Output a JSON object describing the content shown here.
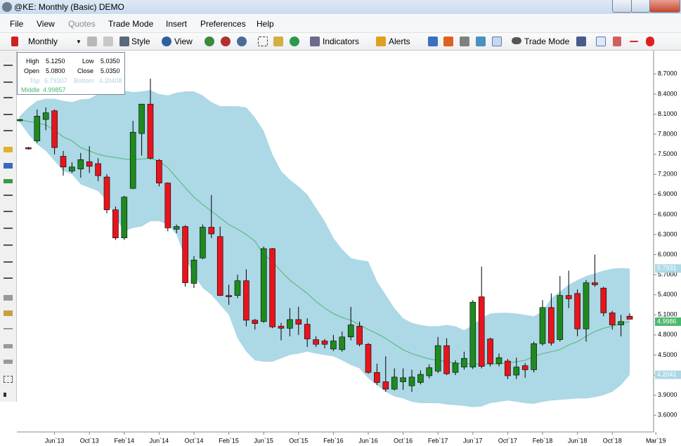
{
  "window": {
    "title": "@KE: Monthly (Basic) DEMO",
    "menu": [
      {
        "label": "File",
        "enabled": true
      },
      {
        "label": "View",
        "enabled": true
      },
      {
        "label": "Quotes",
        "enabled": false
      },
      {
        "label": "Trade Mode",
        "enabled": true
      },
      {
        "label": "Insert",
        "enabled": true
      },
      {
        "label": "Preferences",
        "enabled": true
      },
      {
        "label": "Help",
        "enabled": true
      }
    ],
    "toolbar": {
      "interval": "Monthly",
      "style": "Style",
      "view": "View",
      "indicators": "Indicators",
      "alerts": "Alerts",
      "trade_mode": "Trade Mode"
    }
  },
  "info_box": {
    "high_label": "High",
    "high": "5.1250",
    "low_label": "Low",
    "low": "5.0350",
    "open_label": "Open",
    "open": "5.0800",
    "close_label": "Close",
    "close": "5.0350",
    "top_label": "Top",
    "top": "5.79307",
    "bottom_label": "Bottom",
    "bottom": "4.20408",
    "middle_label": "Middle",
    "middle": "4.99857"
  },
  "chart_data": {
    "type": "candlestick",
    "categories": [
      null,
      null,
      null,
      null,
      "Jun`13",
      null,
      null,
      null,
      "Oct`13",
      null,
      null,
      null,
      "Feb`14",
      null,
      null,
      null,
      "Jun`14",
      null,
      null,
      null,
      "Oct`14",
      null,
      null,
      null,
      "Feb`15",
      null,
      null,
      null,
      "Jun`15",
      null,
      null,
      null,
      "Oct`15",
      null,
      null,
      null,
      "Feb`16",
      null,
      null,
      null,
      "Jun`16",
      null,
      null,
      null,
      "Oct`16",
      null,
      null,
      null,
      "Feb`17",
      null,
      null,
      null,
      "Jun`17",
      null,
      null,
      null,
      "Oct`17",
      null,
      null,
      null,
      "Feb`18",
      null,
      null,
      null,
      "Jun`18",
      null,
      null,
      null,
      "Oct`18",
      null,
      null,
      null,
      null,
      "Mar`19"
    ],
    "open": [
      8.0,
      7.6,
      7.7,
      8.02,
      8.15,
      7.47,
      7.25,
      7.28,
      7.39,
      7.36,
      7.16,
      6.67,
      6.25,
      6.99,
      7.81,
      8.25,
      7.41,
      7.07,
      6.38,
      6.42,
      5.57,
      5.95,
      6.41,
      6.27,
      5.39,
      5.39,
      5.61,
      5.02,
      5.0,
      6.09,
      4.93,
      4.9,
      5.03,
      4.96,
      4.73,
      4.71,
      4.59,
      4.58,
      4.77,
      4.93,
      4.66,
      4.24,
      4.1,
      3.99,
      4.1,
      4.04,
      4.09,
      4.19,
      4.26,
      4.64,
      4.24,
      4.32,
      4.32,
      5.37,
      4.74,
      4.37,
      4.41,
      4.2,
      4.34,
      4.28,
      4.67,
      5.21,
      4.73,
      5.39,
      5.42,
      4.89,
      5.58,
      5.5,
      5.13,
      4.95,
      5.08,
      null,
      null,
      null
    ],
    "high": [
      8.03,
      7.61,
      8.17,
      8.2,
      8.17,
      7.55,
      7.38,
      7.52,
      7.62,
      7.44,
      7.2,
      6.72,
      6.88,
      8.0,
      8.25,
      8.63,
      7.43,
      7.08,
      6.45,
      6.44,
      5.98,
      6.45,
      6.89,
      6.42,
      5.55,
      5.7,
      5.78,
      5.04,
      6.12,
      6.1,
      4.98,
      5.2,
      5.22,
      5.05,
      4.78,
      4.74,
      4.8,
      4.85,
      5.22,
      5.0,
      4.68,
      4.37,
      4.48,
      4.3,
      4.3,
      4.28,
      4.27,
      4.36,
      4.77,
      4.75,
      4.42,
      4.55,
      5.32,
      5.82,
      4.76,
      4.52,
      4.44,
      4.46,
      4.38,
      4.7,
      5.32,
      5.42,
      5.68,
      5.76,
      5.48,
      5.62,
      6.0,
      5.52,
      5.16,
      5.1,
      5.125,
      null,
      null,
      null
    ],
    "low": [
      7.99,
      7.57,
      7.67,
      7.86,
      7.5,
      7.18,
      7.22,
      7.15,
      7.22,
      7.1,
      6.62,
      6.22,
      6.22,
      6.98,
      7.48,
      7.42,
      7.02,
      6.35,
      6.32,
      5.52,
      5.5,
      5.93,
      6.25,
      5.38,
      5.25,
      5.35,
      4.93,
      4.88,
      4.98,
      4.9,
      4.72,
      4.78,
      4.8,
      4.62,
      4.62,
      4.6,
      4.56,
      4.55,
      4.72,
      4.63,
      4.22,
      4.05,
      3.95,
      3.97,
      3.98,
      3.95,
      4.06,
      4.15,
      4.23,
      4.2,
      4.2,
      4.28,
      4.29,
      4.3,
      4.33,
      4.33,
      4.14,
      4.14,
      4.16,
      4.24,
      4.64,
      4.64,
      4.7,
      5.2,
      4.78,
      4.7,
      5.52,
      5.08,
      4.88,
      4.78,
      5.035,
      null,
      null,
      null
    ],
    "close": [
      8.02,
      7.58,
      8.07,
      8.12,
      7.6,
      7.31,
      7.31,
      7.42,
      7.32,
      7.18,
      6.67,
      6.25,
      6.86,
      7.83,
      8.25,
      7.44,
      7.07,
      6.4,
      6.42,
      5.58,
      5.92,
      6.41,
      6.31,
      5.39,
      5.37,
      5.61,
      5.02,
      4.97,
      6.09,
      4.92,
      4.9,
      5.03,
      4.96,
      4.74,
      4.66,
      4.66,
      4.71,
      4.77,
      4.95,
      4.66,
      4.24,
      4.09,
      3.99,
      4.17,
      4.16,
      4.17,
      4.21,
      4.31,
      4.64,
      4.22,
      4.38,
      4.45,
      5.29,
      4.33,
      4.37,
      4.46,
      4.19,
      4.32,
      4.28,
      4.67,
      5.21,
      4.68,
      5.39,
      5.34,
      4.89,
      5.58,
      5.55,
      5.13,
      4.95,
      5.0,
      5.035,
      null,
      null,
      null
    ],
    "band_top": [
      8.07,
      8.2,
      8.3,
      8.33,
      8.33,
      8.3,
      8.28,
      8.32,
      8.33,
      8.4,
      8.44,
      8.46,
      8.45,
      8.43,
      8.44,
      8.46,
      8.4,
      8.38,
      8.42,
      8.44,
      8.44,
      8.38,
      8.28,
      8.22,
      8.22,
      8.22,
      8.2,
      8.05,
      7.85,
      7.5,
      7.25,
      7.12,
      7.02,
      6.9,
      6.7,
      6.5,
      6.25,
      6.08,
      5.95,
      5.92,
      5.9,
      5.6,
      5.4,
      5.2,
      5.05,
      4.98,
      4.95,
      4.93,
      4.93,
      4.95,
      4.93,
      4.87,
      4.95,
      5.05,
      5.12,
      5.13,
      5.13,
      5.12,
      5.1,
      5.08,
      5.15,
      5.35,
      5.45,
      5.55,
      5.62,
      5.68,
      5.72,
      5.76,
      5.79,
      5.8,
      5.79307,
      null,
      null,
      null
    ],
    "band_middle": [
      8.02,
      7.99,
      7.97,
      7.94,
      7.86,
      7.76,
      7.7,
      7.6,
      7.55,
      7.5,
      7.47,
      7.45,
      7.43,
      7.42,
      7.43,
      7.44,
      7.4,
      7.3,
      7.15,
      7.0,
      6.86,
      6.75,
      6.65,
      6.55,
      6.45,
      6.38,
      6.3,
      6.2,
      6.0,
      5.9,
      5.75,
      5.62,
      5.52,
      5.42,
      5.3,
      5.2,
      5.12,
      5.06,
      5.02,
      4.95,
      4.88,
      4.82,
      4.75,
      4.66,
      4.58,
      4.52,
      4.48,
      4.44,
      4.42,
      4.4,
      4.38,
      4.37,
      4.37,
      4.36,
      4.36,
      4.37,
      4.38,
      4.4,
      4.42,
      4.48,
      4.52,
      4.55,
      4.58,
      4.65,
      4.7,
      4.78,
      4.85,
      4.9,
      4.93,
      4.97,
      4.99857,
      null,
      null,
      null
    ],
    "band_bottom": [
      7.98,
      7.8,
      7.65,
      7.55,
      7.4,
      7.25,
      7.2,
      7.05,
      7.0,
      6.95,
      6.8,
      6.55,
      6.35,
      6.4,
      6.42,
      6.5,
      6.5,
      6.45,
      6.3,
      5.95,
      5.7,
      5.5,
      5.4,
      5.25,
      5.1,
      4.75,
      4.55,
      4.42,
      4.4,
      4.4,
      4.45,
      4.5,
      4.52,
      4.55,
      4.52,
      4.5,
      4.48,
      4.42,
      4.35,
      4.3,
      4.15,
      4.05,
      3.95,
      3.88,
      3.85,
      3.8,
      3.78,
      3.78,
      3.78,
      3.76,
      3.75,
      3.74,
      3.72,
      3.73,
      3.78,
      3.8,
      3.82,
      3.8,
      3.78,
      3.77,
      3.8,
      3.82,
      3.83,
      3.84,
      3.85,
      3.85,
      3.87,
      3.9,
      3.95,
      4.05,
      4.20408,
      null,
      null,
      null
    ],
    "up_color": "#1f8a1f",
    "down_color": "#e8141c",
    "band_color": "#add8e6",
    "middle_color": "#4cb86e",
    "ylim": [
      3.35,
      9.05
    ],
    "yticks": [
      {
        "value": 3.6,
        "label": "3.6000"
      },
      {
        "value": 3.9,
        "label": "3.9000"
      },
      {
        "value": 4.2,
        "label": "4.2000"
      },
      {
        "value": 4.5,
        "label": "4.5000"
      },
      {
        "value": 4.8,
        "label": "4.8000"
      },
      {
        "value": 5.1,
        "label": "5.1000"
      },
      {
        "value": 5.4,
        "label": "5.4000"
      },
      {
        "value": 5.7,
        "label": "5.7000"
      },
      {
        "value": 6.0,
        "label": "6.0000"
      },
      {
        "value": 6.3,
        "label": "6.3000"
      },
      {
        "value": 6.6,
        "label": "6.6000"
      },
      {
        "value": 6.9,
        "label": "6.9000"
      },
      {
        "value": 7.2,
        "label": "7.2000"
      },
      {
        "value": 7.5,
        "label": "7.5000"
      },
      {
        "value": 7.8,
        "label": "7.8000"
      },
      {
        "value": 8.1,
        "label": "8.1000"
      },
      {
        "value": 8.4,
        "label": "8.4000"
      },
      {
        "value": 8.7,
        "label": "8.7000"
      }
    ],
    "grid": false,
    "price_labels": [
      {
        "value": 5.79307,
        "label": "5.7931",
        "color": "#add8e6"
      },
      {
        "value": 4.99857,
        "label": "4.9986",
        "color": "#4cb86e"
      },
      {
        "value": 4.20408,
        "label": "4.2041",
        "color": "#add8e6"
      }
    ]
  }
}
